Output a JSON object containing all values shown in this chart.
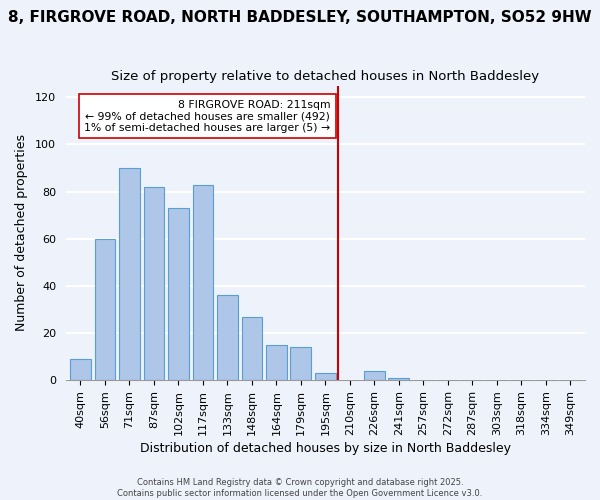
{
  "title": "8, FIRGROVE ROAD, NORTH BADDESLEY, SOUTHAMPTON, SO52 9HW",
  "subtitle": "Size of property relative to detached houses in North Baddesley",
  "xlabel": "Distribution of detached houses by size in North Baddesley",
  "ylabel": "Number of detached properties",
  "bar_labels": [
    "40sqm",
    "56sqm",
    "71sqm",
    "87sqm",
    "102sqm",
    "117sqm",
    "133sqm",
    "148sqm",
    "164sqm",
    "179sqm",
    "195sqm",
    "210sqm",
    "226sqm",
    "241sqm",
    "257sqm",
    "272sqm",
    "287sqm",
    "303sqm",
    "318sqm",
    "334sqm",
    "349sqm"
  ],
  "bar_values": [
    9,
    60,
    90,
    82,
    73,
    83,
    36,
    27,
    15,
    14,
    3,
    0,
    4,
    1,
    0,
    0,
    0,
    0,
    0,
    0,
    0
  ],
  "bar_color": "#aec6e8",
  "bar_edge_color": "#5a9fd4",
  "vline_index": 11,
  "vline_color": "#cc0000",
  "annotation_line1": "8 FIRGROVE ROAD: 211sqm",
  "annotation_line2": "← 99% of detached houses are smaller (492)",
  "annotation_line3": "1% of semi-detached houses are larger (5) →",
  "ylim": [
    0,
    125
  ],
  "yticks": [
    0,
    20,
    40,
    60,
    80,
    100,
    120
  ],
  "footnote1": "Contains HM Land Registry data © Crown copyright and database right 2025.",
  "footnote2": "Contains public sector information licensed under the Open Government Licence v3.0.",
  "bg_color": "#eef2fb",
  "grid_color": "#ffffff",
  "title_fontsize": 11,
  "subtitle_fontsize": 9.5,
  "axis_label_fontsize": 9,
  "tick_fontsize": 8
}
